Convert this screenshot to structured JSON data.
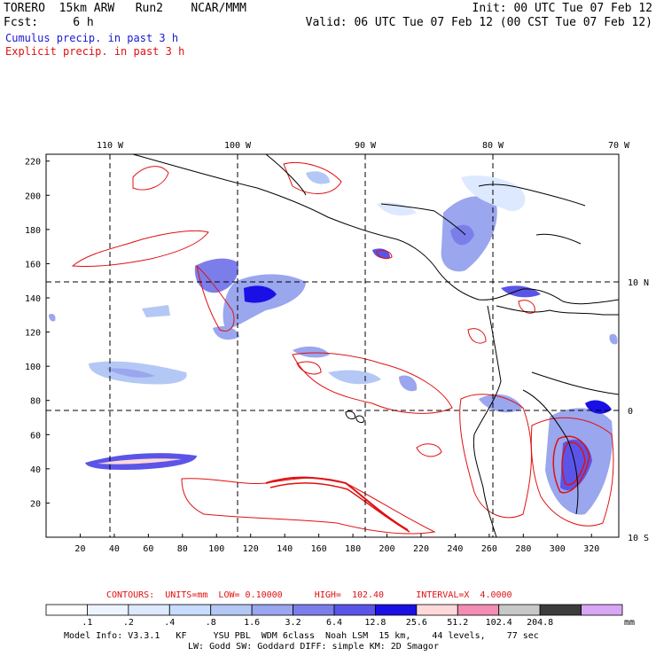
{
  "header": {
    "left_line1": "TORERO  15km ARW   Run2    NCAR/MMM",
    "left_line2": "Fcst:     6 h",
    "right_line1": "Init: 00 UTC Tue 07 Feb 12",
    "right_line2": "Valid: 06 UTC Tue 07 Feb 12 (00 CST Tue 07 Feb 12)",
    "legend_cumulus": "Cumulus precip. in past 3 h",
    "legend_explicit": "Explicit precip. in past 3 h",
    "cumulus_color": "#1a1ad0",
    "explicit_color": "#e01010"
  },
  "map": {
    "lon_labels": [
      "110 W",
      "100 W",
      "90 W",
      "80 W",
      "70 W"
    ],
    "lat_labels": [
      "10 N",
      "0",
      "10 S"
    ],
    "x_ticks": [
      "20",
      "40",
      "60",
      "80",
      "100",
      "120",
      "140",
      "160",
      "180",
      "200",
      "220",
      "240",
      "260",
      "280",
      "300",
      "320"
    ],
    "y_ticks": [
      "220",
      "200",
      "180",
      "160",
      "140",
      "120",
      "100",
      "80",
      "60",
      "40",
      "20"
    ]
  },
  "contours_info": {
    "label": "CONTOURS:  UNITS=mm  LOW= 0.10000      HIGH=  102.40      INTERVAL=X  4.0000",
    "color": "#e01010"
  },
  "colorbar": {
    "colors": [
      "#ffffff",
      "#eef4ff",
      "#dde9ff",
      "#c8dcff",
      "#b4c8f5",
      "#9aa6ee",
      "#7b7eea",
      "#5a55e8",
      "#1a10e6",
      "#ffd9d9",
      "#f48db4",
      "#c8c8c8",
      "#3c3c3c",
      "#d9a6f5"
    ],
    "labels": [
      ".1",
      ".2",
      ".4",
      ".8",
      "1.6",
      "3.2",
      "6.4",
      "12.8",
      "25.6",
      "51.2",
      "102.4",
      "204.8"
    ],
    "unit": "mm"
  },
  "model_info": {
    "line1": "Model Info: V3.3.1   KF     YSU PBL  WDM 6class  Noah LSM  15 km,    44 levels,    77 sec",
    "line2": "LW: Godd SW: Goddard DIFF: simple KM: 2D Smagor"
  }
}
